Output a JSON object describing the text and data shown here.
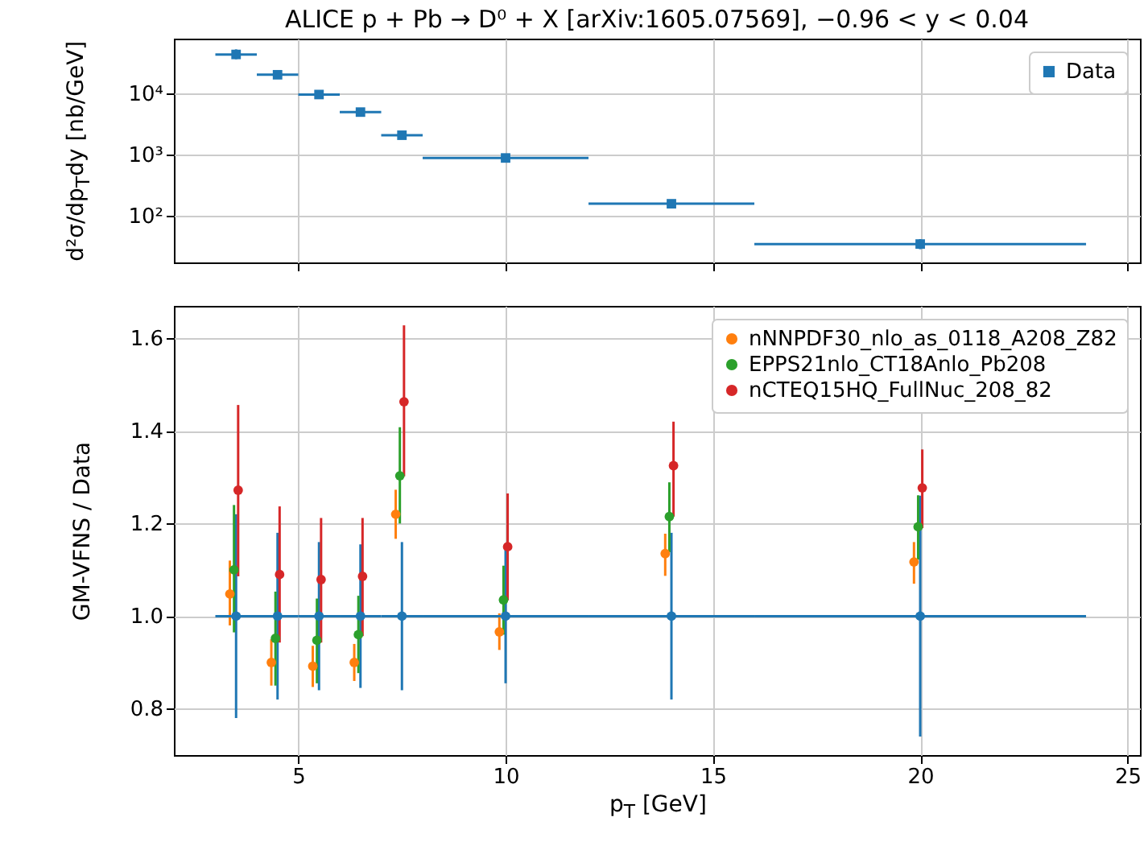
{
  "chart_data": [
    {
      "type": "scatter",
      "title": "ALICE   p + Pb → D⁰ + X   [arXiv:1605.07569],   −0.96 < y < 0.04",
      "ylabel": "d²σ/dp$_{T}$dy [nb/GeV]",
      "x": [
        3.5,
        4.5,
        5.5,
        6.5,
        7.5,
        10,
        14,
        20
      ],
      "series": [
        {
          "name": "Data",
          "color": "#1f77b4",
          "values": [
            43000,
            20000,
            9500,
            4900,
            2050,
            870,
            155,
            34
          ],
          "xerrors": [
            [
              3,
              4
            ],
            [
              4,
              5
            ],
            [
              5,
              6
            ],
            [
              6,
              7
            ],
            [
              7,
              8
            ],
            [
              8,
              12
            ],
            [
              12,
              16
            ],
            [
              16,
              24
            ]
          ],
          "errors": [
            [
              36000,
              52000
            ],
            [
              17500,
              23000
            ],
            [
              8300,
              10800
            ],
            [
              4300,
              5600
            ],
            [
              1800,
              2350
            ],
            [
              770,
              990
            ],
            [
              135,
              180
            ],
            [
              28,
              41
            ]
          ]
        }
      ],
      "log": "y",
      "xlim": [
        2,
        25.3
      ],
      "xticks": [
        5,
        10,
        15,
        20,
        25
      ],
      "ylim": [
        17,
        78000
      ],
      "yticks": [
        {
          "value": 100,
          "label": "10²"
        },
        {
          "value": 1000,
          "label": "10³"
        },
        {
          "value": 10000,
          "label": "10⁴"
        }
      ],
      "tick_labels": "y",
      "grid": true,
      "legend": "top right",
      "marker": "square"
    },
    {
      "type": "scatter",
      "xlabel": "p$_{T}$ [GeV]",
      "ylabel": "GM-VFNS / Data",
      "series": [
        {
          "color": "#1f77b4",
          "x": [
            3.5,
            4.5,
            5.5,
            6.5,
            7.5,
            10,
            14,
            20
          ],
          "values": [
            1,
            1,
            1,
            1,
            1,
            1,
            1,
            1
          ],
          "xerrors": [
            [
              3,
              4
            ],
            [
              4,
              5
            ],
            [
              5,
              6
            ],
            [
              6,
              7
            ],
            [
              7,
              8
            ],
            [
              8,
              12
            ],
            [
              12,
              16
            ],
            [
              16,
              24
            ]
          ],
          "errors": [
            0.22,
            0.18,
            0.16,
            0.155,
            0.16,
            0.145,
            0.18,
            0.26
          ]
        },
        {
          "name": "nNNPDF30_nlo_as_0118_A208_Z82",
          "color": "#ff7f0e",
          "x": [
            3.35,
            4.35,
            5.35,
            6.35,
            7.35,
            9.85,
            13.85,
            19.85
          ],
          "values": [
            1.048,
            0.9,
            0.892,
            0.9,
            1.22,
            0.966,
            1.135,
            1.117
          ],
          "errors": [
            [
              0.98,
              1.12
            ],
            [
              0.85,
              0.95
            ],
            [
              0.847,
              0.936
            ],
            [
              0.86,
              0.94
            ],
            [
              1.167,
              1.273
            ],
            [
              0.927,
              1.006
            ],
            [
              1.087,
              1.178
            ],
            [
              1.07,
              1.16
            ]
          ]
        },
        {
          "name": "EPPS21nlo_CT18Anlo_Pb208",
          "color": "#2ca02c",
          "x": [
            3.45,
            4.45,
            5.45,
            6.45,
            7.45,
            9.95,
            13.95,
            19.95
          ],
          "values": [
            1.1,
            0.952,
            0.948,
            0.96,
            1.303,
            1.035,
            1.215,
            1.193
          ],
          "errors": [
            [
              0.965,
              1.24
            ],
            [
              0.85,
              1.053
            ],
            [
              0.855,
              1.038
            ],
            [
              0.877,
              1.044
            ],
            [
              1.2,
              1.408
            ],
            [
              0.96,
              1.109
            ],
            [
              1.138,
              1.289
            ],
            [
              1.122,
              1.261
            ]
          ]
        },
        {
          "name": "nCTEQ15HQ_FullNuc_208_82",
          "color": "#d62728",
          "x": [
            3.55,
            4.55,
            5.55,
            6.55,
            7.55,
            10.05,
            14.05,
            20.05
          ],
          "values": [
            1.272,
            1.09,
            1.079,
            1.086,
            1.463,
            1.15,
            1.325,
            1.277
          ],
          "errors": [
            [
              1.086,
              1.456
            ],
            [
              0.943,
              1.237
            ],
            [
              0.943,
              1.212
            ],
            [
              0.957,
              1.212
            ],
            [
              1.302,
              1.628
            ],
            [
              1.034,
              1.265
            ],
            [
              1.215,
              1.42
            ],
            [
              1.19,
              1.36
            ]
          ]
        }
      ],
      "xlim": [
        2,
        25.3
      ],
      "xticks": [
        5,
        10,
        15,
        20,
        25
      ],
      "ylim": [
        0.7,
        1.67
      ],
      "yticks": [
        0.8,
        {
          "value": 1,
          "label": "1.0"
        },
        1.2,
        1.4,
        1.6
      ],
      "grid": true,
      "legend": "top right",
      "marker": "circle"
    }
  ]
}
